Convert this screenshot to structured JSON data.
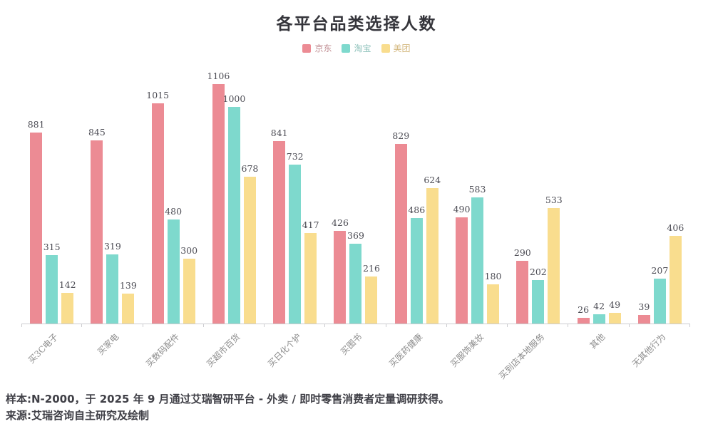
{
  "header": {
    "title": "各平台品类选择人数"
  },
  "legend": {
    "position": "top-center",
    "items": [
      {
        "label": "京东",
        "marker_color": "#ec8b94",
        "text_color": "#c08d92"
      },
      {
        "label": "淘宝",
        "marker_color": "#7ed9cd",
        "text_color": "#8ec2bb"
      },
      {
        "label": "美团",
        "marker_color": "#f9dd8e",
        "text_color": "#d4b87f"
      }
    ]
  },
  "chart_data": {
    "type": "bar",
    "title": "各平台品类选择人数",
    "categories": [
      "买3C电子",
      "买家电",
      "买数码配件",
      "买超市百货",
      "买日化个护",
      "买图书",
      "买医药健康",
      "买服饰美妆",
      "买到店本地服务",
      "其他",
      "无其他行为"
    ],
    "series": [
      {
        "name": "京东",
        "color": "#ec8b94",
        "values": [
          881,
          845,
          1015,
          1106,
          841,
          426,
          829,
          490,
          290,
          26,
          39
        ]
      },
      {
        "name": "淘宝",
        "color": "#7ed9cd",
        "values": [
          315,
          319,
          480,
          1000,
          732,
          369,
          486,
          583,
          202,
          42,
          207
        ]
      },
      {
        "name": "美团",
        "color": "#f9dd8e",
        "values": [
          142,
          139,
          300,
          678,
          417,
          216,
          624,
          180,
          533,
          49,
          406
        ]
      }
    ],
    "xlabel": "",
    "ylabel": "",
    "ylim": [
      0,
      1200
    ],
    "grid": false,
    "value_labels": true,
    "x_label_rotation": 45,
    "axis_color": "#ccccd0",
    "value_label_color": "#4d4d55",
    "category_label_color": "#8c8c8c"
  },
  "footer": {
    "line1": "样本:N-2000，于 2025 年 9 月通过艾瑞智研平台 - 外卖 / 即时零售消费者定量调研获得。",
    "line2": "来源:艾瑞咨询自主研究及绘制"
  }
}
